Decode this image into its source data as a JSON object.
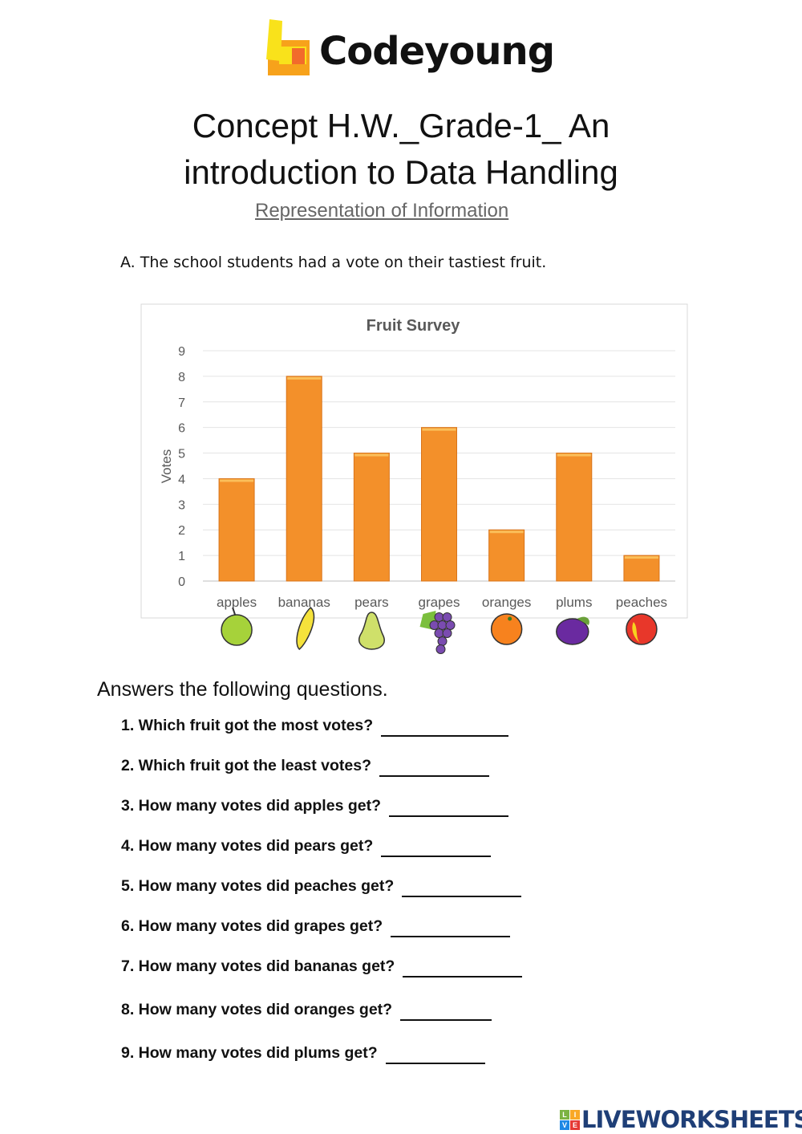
{
  "logo": {
    "text": "Codeyoung",
    "colors": {
      "yellow": "#f9e21b",
      "orange": "#f7a21b",
      "red": "#f26b2b"
    }
  },
  "header": {
    "title_line1": "Concept H.W._Grade-1_ An",
    "title_line2": "introduction to Data Handling",
    "subtitle": "Representation of Information"
  },
  "question_a": "A.  The school students had a vote on their tastiest fruit.",
  "chart_data": {
    "type": "bar",
    "title": "Fruit Survey",
    "xlabel": "",
    "ylabel": "Votes",
    "categories": [
      "apples",
      "bananas",
      "pears",
      "grapes",
      "oranges",
      "plums",
      "peaches"
    ],
    "values": [
      4,
      8,
      5,
      6,
      2,
      5,
      1
    ],
    "ylim": [
      0,
      9
    ],
    "yticks": [
      0,
      1,
      2,
      3,
      4,
      5,
      6,
      7,
      8,
      9
    ],
    "grid": true,
    "bar_color": "#f3902a",
    "category_icons": [
      "apple-icon",
      "banana-icon",
      "pear-icon",
      "grapes-icon",
      "orange-icon",
      "plum-icon",
      "peach-icon"
    ]
  },
  "answers_heading": "Answers the following questions.",
  "questions": [
    {
      "label": "1.  Which fruit got the most votes?",
      "answer": ""
    },
    {
      "label": "2.  Which fruit got the least votes?",
      "answer": ""
    },
    {
      "label": "3.   How many votes did apples get?",
      "answer": ""
    },
    {
      "label": "4.  How many votes did pears get?",
      "answer": ""
    },
    {
      "label": "5.  How many votes did peaches get?",
      "answer": ""
    },
    {
      "label": "6.  How many votes did grapes get?",
      "answer": ""
    },
    {
      "label": "7.  How many votes did bananas get?",
      "answer": ""
    },
    {
      "label": "8.  How many votes did oranges get?",
      "answer": ""
    },
    {
      "label": "9.  How many votes did plums get?",
      "answer": ""
    }
  ],
  "watermark": {
    "text": "LIVEWORKSHEETS",
    "box_letters": [
      "L",
      "I",
      "V",
      "E"
    ],
    "color": "#1f3f77"
  }
}
